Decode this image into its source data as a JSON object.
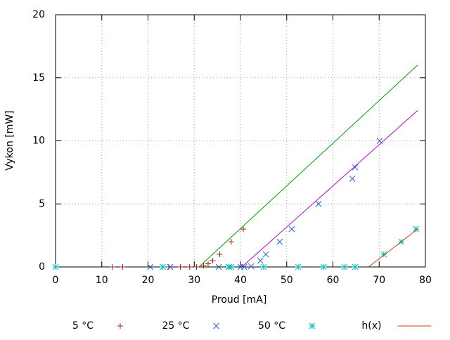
{
  "chart_data": {
    "type": "scatter",
    "x_label": "Proud [mA]",
    "y_label": "Vykon [mW]",
    "xlim": [
      0,
      80
    ],
    "ylim": [
      0,
      20
    ],
    "xticks": [
      0,
      10,
      20,
      30,
      40,
      50,
      60,
      70,
      80
    ],
    "yticks": [
      0,
      5,
      10,
      15,
      20
    ],
    "grid": true,
    "legend": "bottom",
    "series": [
      {
        "name": "5 °C",
        "color": "#b01818",
        "marker": "plus",
        "x": [
          12.3,
          14.5,
          24.5,
          27,
          29,
          30.5,
          32,
          33,
          34,
          35.5,
          38,
          40.6
        ],
        "values": [
          0,
          0,
          0,
          0,
          0,
          0,
          0.1,
          0.25,
          0.5,
          1,
          2,
          3
        ]
      },
      {
        "name": "25 °C",
        "color": "#2060d0",
        "marker": "cross",
        "x": [
          20.5,
          24.8,
          35.3,
          37.5,
          40,
          40.8,
          42.3,
          44.3,
          45.5,
          48.5,
          51.1,
          56.9,
          64.2,
          64.8,
          70.1
        ],
        "values": [
          0,
          0,
          0,
          0,
          0,
          0,
          0.05,
          0.5,
          1,
          2,
          3,
          5,
          7,
          7.9,
          10
        ]
      },
      {
        "name": "50 °C",
        "color": "#00c0c0",
        "marker": "star",
        "x": [
          0,
          23.2,
          37.5,
          38,
          45,
          52.5,
          58,
          62.5,
          64.8,
          71,
          74.8,
          78
        ],
        "values": [
          0,
          0,
          0,
          0,
          0,
          0,
          0,
          0,
          0,
          1,
          2,
          3
        ]
      },
      {
        "name": "h(x)",
        "color": "#c04010",
        "marker": "line",
        "x": [
          67.7,
          78.3
        ],
        "values": [
          0,
          3
        ]
      },
      {
        "color": "#00a000",
        "marker": "line",
        "x": [
          31,
          78.3
        ],
        "values": [
          0,
          16
        ]
      },
      {
        "color": "#b000d0",
        "marker": "line",
        "x": [
          40.3,
          78.3
        ],
        "values": [
          0,
          12.4
        ]
      }
    ]
  }
}
